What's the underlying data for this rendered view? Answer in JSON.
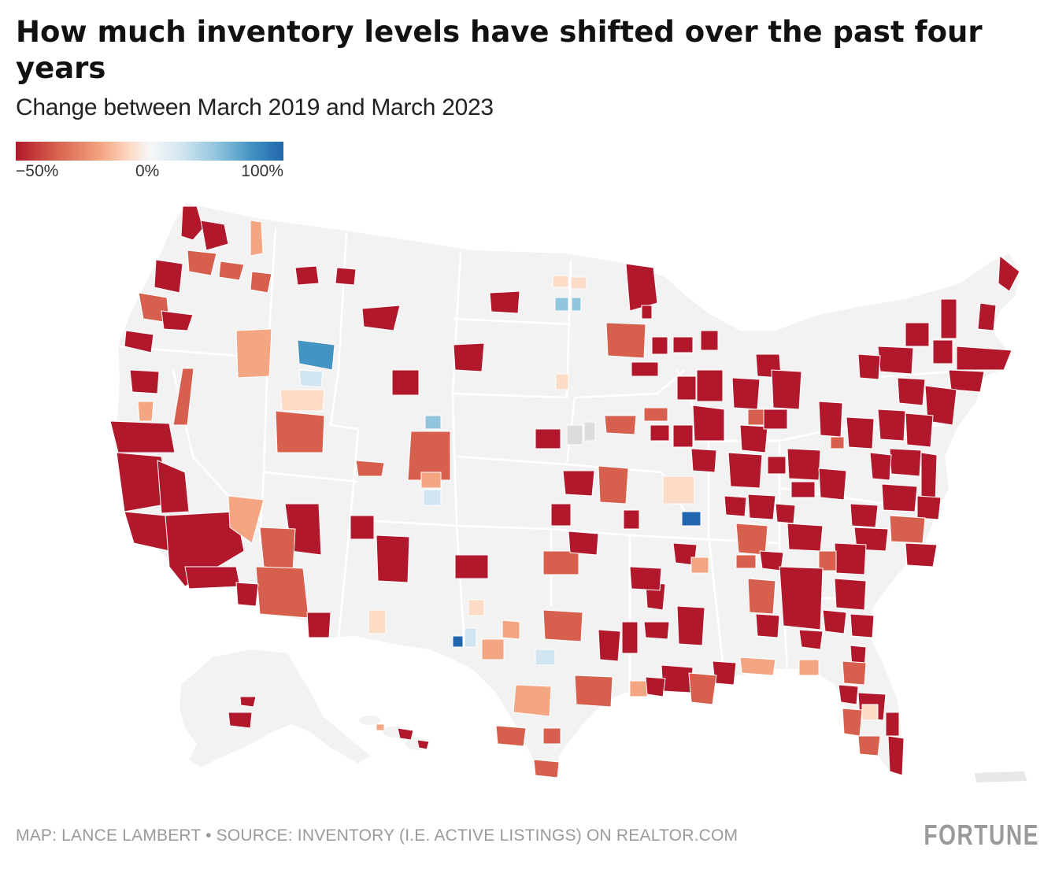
{
  "header": {
    "title": "How much inventory levels have shifted over the past four years",
    "subtitle": "Change between March 2019 and March 2023"
  },
  "legend": {
    "ticks": [
      "−50%",
      "0%",
      "100%"
    ],
    "scale_min": -50,
    "scale_mid": 0,
    "scale_max": 100,
    "colors": [
      "#b2182b",
      "#d6604d",
      "#f4a582",
      "#fddbc7",
      "#f7f7f7",
      "#d1e5f0",
      "#92c5de",
      "#4393c3",
      "#2166ac"
    ]
  },
  "map": {
    "region": "United States (contiguous, Alaska, Hawaii, Puerto Rico)",
    "regions_shown": [
      "contiguous-us",
      "alaska",
      "hawaii",
      "puerto-rico"
    ],
    "no_data_color": "#f2f2f2",
    "dominant_trend": "large declines (dark red) in most metros, especially East, Midwest, South and California",
    "notable_increases": [
      "Boise area, Idaho",
      "Central Missouri",
      "Southwest Texas",
      "North Dakota"
    ]
  },
  "footer": {
    "credit": "MAP: LANCE LAMBERT • SOURCE: INVENTORY (I.E. ACTIVE LISTINGS) ON REALTOR.COM",
    "brand": "FORTUNE"
  }
}
